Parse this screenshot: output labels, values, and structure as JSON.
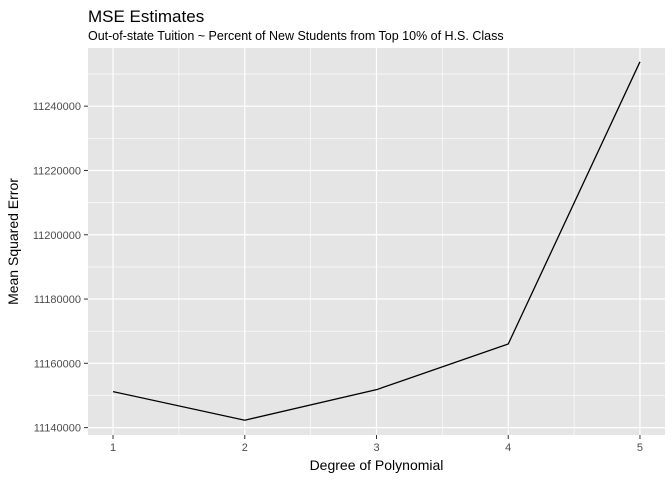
{
  "chart_data": {
    "type": "line",
    "title": "MSE Estimates",
    "subtitle": "Out-of-state Tuition ~ Percent of New Students from Top 10% of H.S. Class",
    "xlabel": "Degree of Polynomial",
    "ylabel": "Mean Squared Error",
    "x": [
      1,
      2,
      3,
      4,
      5
    ],
    "series": [
      {
        "values": [
          11151200,
          11142300,
          11151800,
          11166000,
          11253800
        ]
      }
    ],
    "xlim": [
      0.81,
      5.19
    ],
    "ylim": [
      11137700,
      11258100
    ],
    "x_ticks": [
      1,
      2,
      3,
      4,
      5
    ],
    "y_ticks": [
      11140000,
      11160000,
      11180000,
      11200000,
      11220000,
      11240000
    ],
    "grid": true,
    "colors": {
      "panel": "#e5e5e5",
      "grid_major": "#ffffff",
      "line": "#000000",
      "tick_text": "#4d4d4d"
    }
  }
}
